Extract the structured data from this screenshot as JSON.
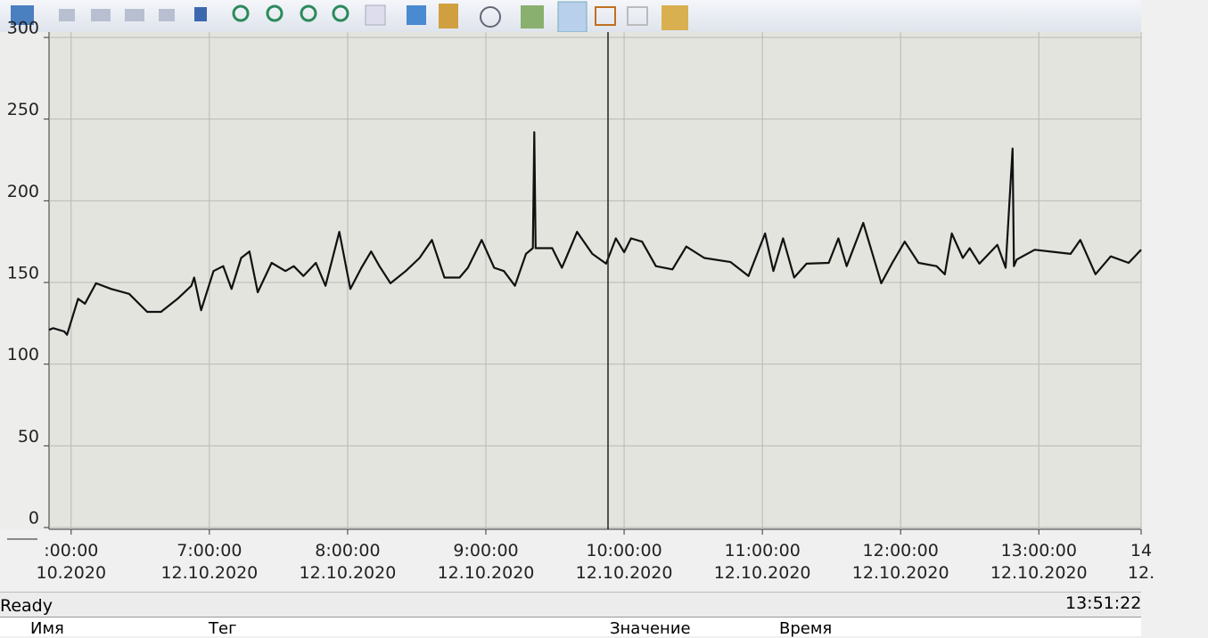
{
  "chart_data": {
    "type": "line",
    "color": "#111111",
    "x": [
      5.84,
      5.87,
      5.95,
      5.97,
      6.05,
      6.1,
      6.18,
      6.29,
      6.42,
      6.55,
      6.65,
      6.77,
      6.87,
      6.89,
      6.94,
      7.03,
      7.1,
      7.16,
      7.23,
      7.29,
      7.35,
      7.45,
      7.55,
      7.61,
      7.68,
      7.77,
      7.84,
      7.94,
      8.02,
      8.1,
      8.17,
      8.23,
      8.31,
      8.42,
      8.52,
      8.61,
      8.7,
      8.81,
      8.87,
      8.97,
      9.06,
      9.13,
      9.21,
      9.29,
      9.34,
      9.35,
      9.36,
      9.48,
      9.55,
      9.66,
      9.77,
      9.87,
      9.94,
      10.0,
      10.05,
      10.13,
      10.23,
      10.35,
      10.45,
      10.58,
      10.77,
      10.9,
      11.02,
      11.08,
      11.15,
      11.23,
      11.32,
      11.48,
      11.55,
      11.61,
      11.73,
      11.86,
      11.94,
      12.03,
      12.13,
      12.26,
      12.32,
      12.37,
      12.45,
      12.5,
      12.57,
      12.7,
      12.76,
      12.81,
      12.82,
      12.84,
      12.97,
      13.13,
      13.23,
      13.3,
      13.41,
      13.52,
      13.65,
      13.74
    ],
    "values": [
      121,
      122,
      120,
      118,
      140,
      137,
      149.5,
      146,
      143,
      132,
      132,
      140,
      148,
      153,
      133,
      157,
      160,
      146,
      165,
      169,
      144,
      162,
      157,
      160,
      154,
      162,
      148,
      181,
      146,
      159,
      169,
      160,
      149.5,
      157,
      165,
      176,
      153,
      153,
      159,
      176,
      159,
      157,
      148,
      167.5,
      171,
      242,
      171,
      171,
      159,
      181,
      167.5,
      161.5,
      177,
      168.5,
      177,
      175,
      160,
      158,
      172,
      165,
      162.5,
      154,
      180,
      157,
      177,
      153,
      161.5,
      162,
      177,
      160,
      186.5,
      149.5,
      162,
      175,
      162,
      160,
      155,
      180,
      165,
      171,
      161.5,
      173,
      159,
      232,
      160,
      164,
      170,
      168.5,
      167.5,
      176,
      155,
      166,
      162,
      170
    ],
    "xlim": [
      5.84,
      13.74
    ],
    "xticks": [
      {
        "value": 6,
        "label": ":00:00\n10.2020"
      },
      {
        "value": 7,
        "label": "7:00:00\n12.10.2020"
      },
      {
        "value": 8,
        "label": "8:00:00\n12.10.2020"
      },
      {
        "value": 9,
        "label": "9:00:00\n12.10.2020"
      },
      {
        "value": 10,
        "label": "10:00:00\n12.10.2020"
      },
      {
        "value": 11,
        "label": "11:00:00\n12.10.2020"
      },
      {
        "value": 12,
        "label": "12:00:00\n12.10.2020"
      },
      {
        "value": 13,
        "label": "13:00:00\n12.10.2020"
      },
      {
        "value": 13.74,
        "label": "14\n12."
      }
    ],
    "ylim": [
      0,
      300
    ],
    "yticks": [
      0,
      50,
      100,
      150,
      200,
      250,
      300
    ],
    "grid": true
  },
  "status": {
    "text": "Ready",
    "time": "13:51:22"
  },
  "table": {
    "columns": [
      "Имя",
      "Тег",
      "Значение",
      "Время"
    ]
  }
}
